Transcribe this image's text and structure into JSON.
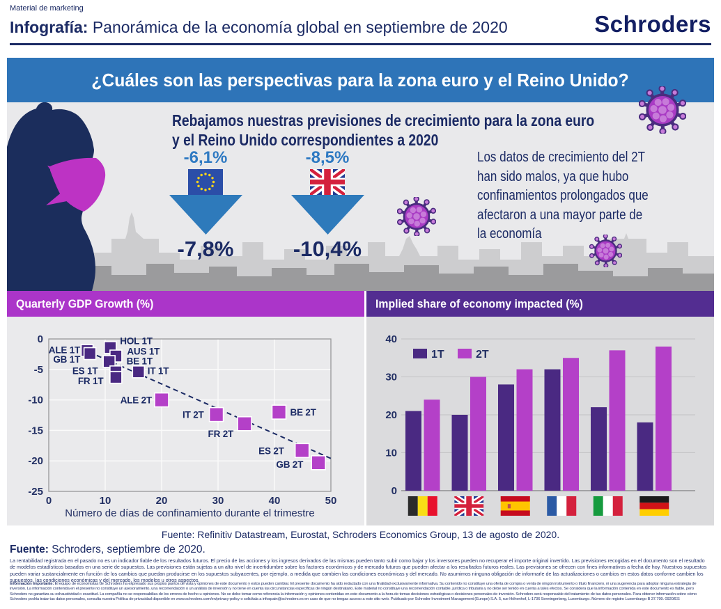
{
  "header": {
    "eyebrow": "Material de marketing",
    "title_bold": "Infografía:",
    "title_rest": " Panorámica de la economía global en septiembre de 2020",
    "logo": "Schroders"
  },
  "banner": {
    "question": "¿Cuáles son las perspectivas para la zona euro y el Reino Unido?"
  },
  "hero": {
    "headline_line1": "Rebajamos nuestras previsiones de crecimiento para la zona euro",
    "headline_line2": "y el Reino Unido correspondientes a 2020",
    "eurozone": {
      "old": "-6,1%",
      "new": "-7,8%",
      "flag": "eu"
    },
    "uk": {
      "old": "-8,5%",
      "new": "-10,4%",
      "flag": "gb"
    },
    "side_note": "Los datos de crecimiento del 2T han sido malos, ya que hubo confinamientos prolongados que afectaron a una mayor parte de la economía"
  },
  "chart_data": [
    {
      "type": "scatter",
      "title": "Quarterly GDP Growth (%)",
      "xlabel": "Número de días de confinamiento durante el trimestre",
      "xlim": [
        0,
        50
      ],
      "ylim": [
        -25,
        0
      ],
      "xticks": [
        0,
        10,
        20,
        30,
        40,
        50
      ],
      "yticks": [
        0,
        -5,
        -10,
        -15,
        -20,
        -25
      ],
      "grid": true,
      "series": [
        {
          "name": "1T",
          "color": "#4a2982",
          "size": 17,
          "points": [
            {
              "label": "ALE 1T",
              "x": 6.8,
              "y": -1.9,
              "anchor": "end",
              "dx": -10,
              "dy": 4
            },
            {
              "label": "GB 1T",
              "x": 7.3,
              "y": -2.4,
              "anchor": "end",
              "dx": -14,
              "dy": 13
            },
            {
              "label": "HOL 1T",
              "x": 10.9,
              "y": -1.4,
              "anchor": "start",
              "dx": 14,
              "dy": -5
            },
            {
              "label": "AUS 1T",
              "x": 11.9,
              "y": -2.8,
              "anchor": "start",
              "dx": 16,
              "dy": -2
            },
            {
              "label": "BE 1T",
              "x": 10.7,
              "y": -3.7,
              "anchor": "start",
              "dx": 25,
              "dy": 4
            },
            {
              "label": "ES 1T",
              "x": 11.9,
              "y": -5.4,
              "anchor": "end",
              "dx": -26,
              "dy": 3
            },
            {
              "label": "FR 1T",
              "x": 11.9,
              "y": -6.3,
              "anchor": "end",
              "dx": -18,
              "dy": 10
            },
            {
              "label": "IT 1T",
              "x": 15.9,
              "y": -5.4,
              "anchor": "start",
              "dx": 13,
              "dy": 3
            }
          ]
        },
        {
          "name": "2T",
          "color": "#b440c8",
          "size": 20,
          "points": [
            {
              "label": "ALE 2T",
              "x": 20,
              "y": -10,
              "anchor": "end",
              "dx": -14,
              "dy": 5
            },
            {
              "label": "IT 2T",
              "x": 29.7,
              "y": -12.4,
              "anchor": "end",
              "dx": -18,
              "dy": 5
            },
            {
              "label": "FR 2T",
              "x": 34.7,
              "y": -13.9,
              "anchor": "end",
              "dx": -16,
              "dy": 19
            },
            {
              "label": "BE 2T",
              "x": 40.8,
              "y": -12,
              "anchor": "start",
              "dx": 16,
              "dy": 5
            },
            {
              "label": "ES 2T",
              "x": 44.9,
              "y": -18.3,
              "anchor": "end",
              "dx": -26,
              "dy": 5
            },
            {
              "label": "GB 2T",
              "x": 47.8,
              "y": -20.3,
              "anchor": "end",
              "dx": -22,
              "dy": 7
            }
          ]
        }
      ],
      "trendline": {
        "x1": 5.8,
        "y1": -1.6,
        "x2": 50,
        "y2": -19.6,
        "style": "dashed"
      }
    },
    {
      "type": "bar",
      "title": "Implied share of economy impacted (%)",
      "categories": [
        "Bélgica",
        "Reino Unido",
        "España",
        "Francia",
        "Italia",
        "Alemania"
      ],
      "category_flags": [
        "be",
        "gb",
        "es",
        "fr",
        "it",
        "de"
      ],
      "series": [
        {
          "name": "1T",
          "color": "#4a2982",
          "values": [
            21,
            20,
            28,
            32,
            22,
            18
          ]
        },
        {
          "name": "2T",
          "color": "#b440c8",
          "values": [
            24,
            30,
            32,
            35,
            37,
            38
          ]
        }
      ],
      "ylim": [
        0,
        40
      ],
      "yticks": [
        0,
        10,
        20,
        30,
        40
      ],
      "legend_position": "top-left"
    }
  ],
  "charts_source": "Fuente: Refinitiv Datastream, Eurostat, Schroders Economics Group, 13 de agosto de 2020.",
  "footer": {
    "source_bold": "Fuente:",
    "source_rest": " Schroders, septiembre de 2020.",
    "disclaimer1": "La rentabilidad registrada en el pasado no es un indicador fiable de los resultados futuros. El precio de las acciones y los ingresos derivados de las mismas pueden tanto subir como bajar y los inversores pueden no recuperar el importe original invertido. Las previsiones recogidas en el documento son el resultado de modelos estadísticos basados en una serie de supuestos. Las previsiones están sujetas a un alto nivel de incertidumbre sobre los factores económicos y de mercado futuros que pueden afectar a los resultados futuros reales. Las previsiones se ofrecen con fines informativos a fecha de hoy. Nuestros supuestos pueden variar sustancialmente en función de los cambios que puedan producirse en los supuestos subyacentes, por ejemplo, a medida que cambien las condiciones económicas y del mercado. No asumimos ninguna obligación de informarle de las actualizaciones o cambios en estos datos conforme cambien los supuestos, las condiciones económicas y del mercado, los modelos u otros aspectos.",
    "disclaimer2_bold": "Información Importante:",
    "disclaimer2_rest": " El equipo de economistas de Schroders ha expresado sus propios puntos de vista y opiniones de este documento y estos pueden cambiar. El presente documento ha sido redactado con una finalidad exclusivamente informativa. Su contenido no constituye una oferta de compra o venta de ningún instrumento o título financiero, ni una sugerencia para adoptar ninguna estrategia de inversión. La información contenida en el presente no constituye un asesoramiento, una recomendación o un análisis de inversión y no tiene en cuenta las circunstancias específicas de ningún destinatario. Este material no constituye una recomendación contable, jurídica o tributaria y no debe ser tenido en cuenta a tales efectos. Se considera que la información contenida en este documento es fiable, pero Schroders no garantiza su exhaustividad o exactitud. La compañía no se responsabiliza de los errores de hecho u opiniones. No se debe tomar como referencia la información y opiniones contenidas en este documento a la hora de tomas decisiones estratégicas o decisiones personales de inversión. Schroders será responsable del tratamiento de tus datos personales. Para obtener información sobre cómo Schroders podría tratar tus datos personales, consulta nuestra Política de privacidad disponible en www.schroders.com/en/privacy-policy o solicítala a infospain@schroders.es en caso de que no tengas acceso a este sitio web. Publicado por Schroder Investment Management (Europe) S.A. 5, rue Höhenhof, L-1736 Senningerberg, Luxemburgo. Número de registro Luxemburgo B 37.799. 0920/ES"
  },
  "colors": {
    "navy": "#1b2a64",
    "banner_blue": "#2e74b8",
    "arrow_blue": "#2e7abb",
    "magenta_header": "#ab35c9",
    "purple_header": "#532d91",
    "series_1t": "#4a2982",
    "series_2t": "#b440c8"
  }
}
